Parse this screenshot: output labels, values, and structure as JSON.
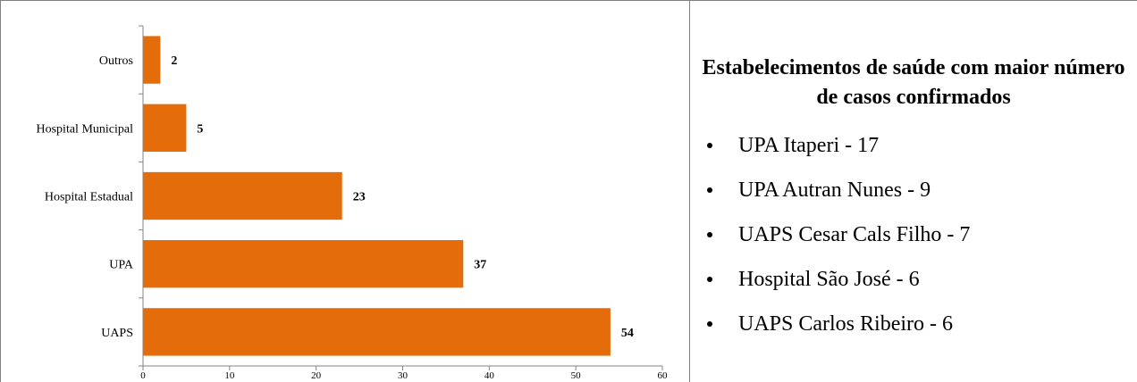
{
  "chart_data": {
    "type": "bar",
    "orientation": "horizontal",
    "categories": [
      "Outros",
      "Hospital Municipal",
      "Hospital Estadual",
      "UPA",
      "UAPS"
    ],
    "values": [
      2,
      5,
      23,
      37,
      54
    ],
    "xlim": [
      0,
      60
    ],
    "xticks": [
      0,
      10,
      20,
      30,
      40,
      50,
      60
    ],
    "bar_color": "#e46c0a",
    "grid": false,
    "legend": "none",
    "data_labels": true
  },
  "panel": {
    "title": "Estabelecimentos de saúde com maior número de casos confirmados",
    "items": [
      "UPA Itaperi - 17",
      "UPA Autran Nunes - 9",
      "UAPS Cesar Cals Filho - 7",
      "Hospital São José - 6",
      "UAPS Carlos Ribeiro - 6"
    ]
  }
}
